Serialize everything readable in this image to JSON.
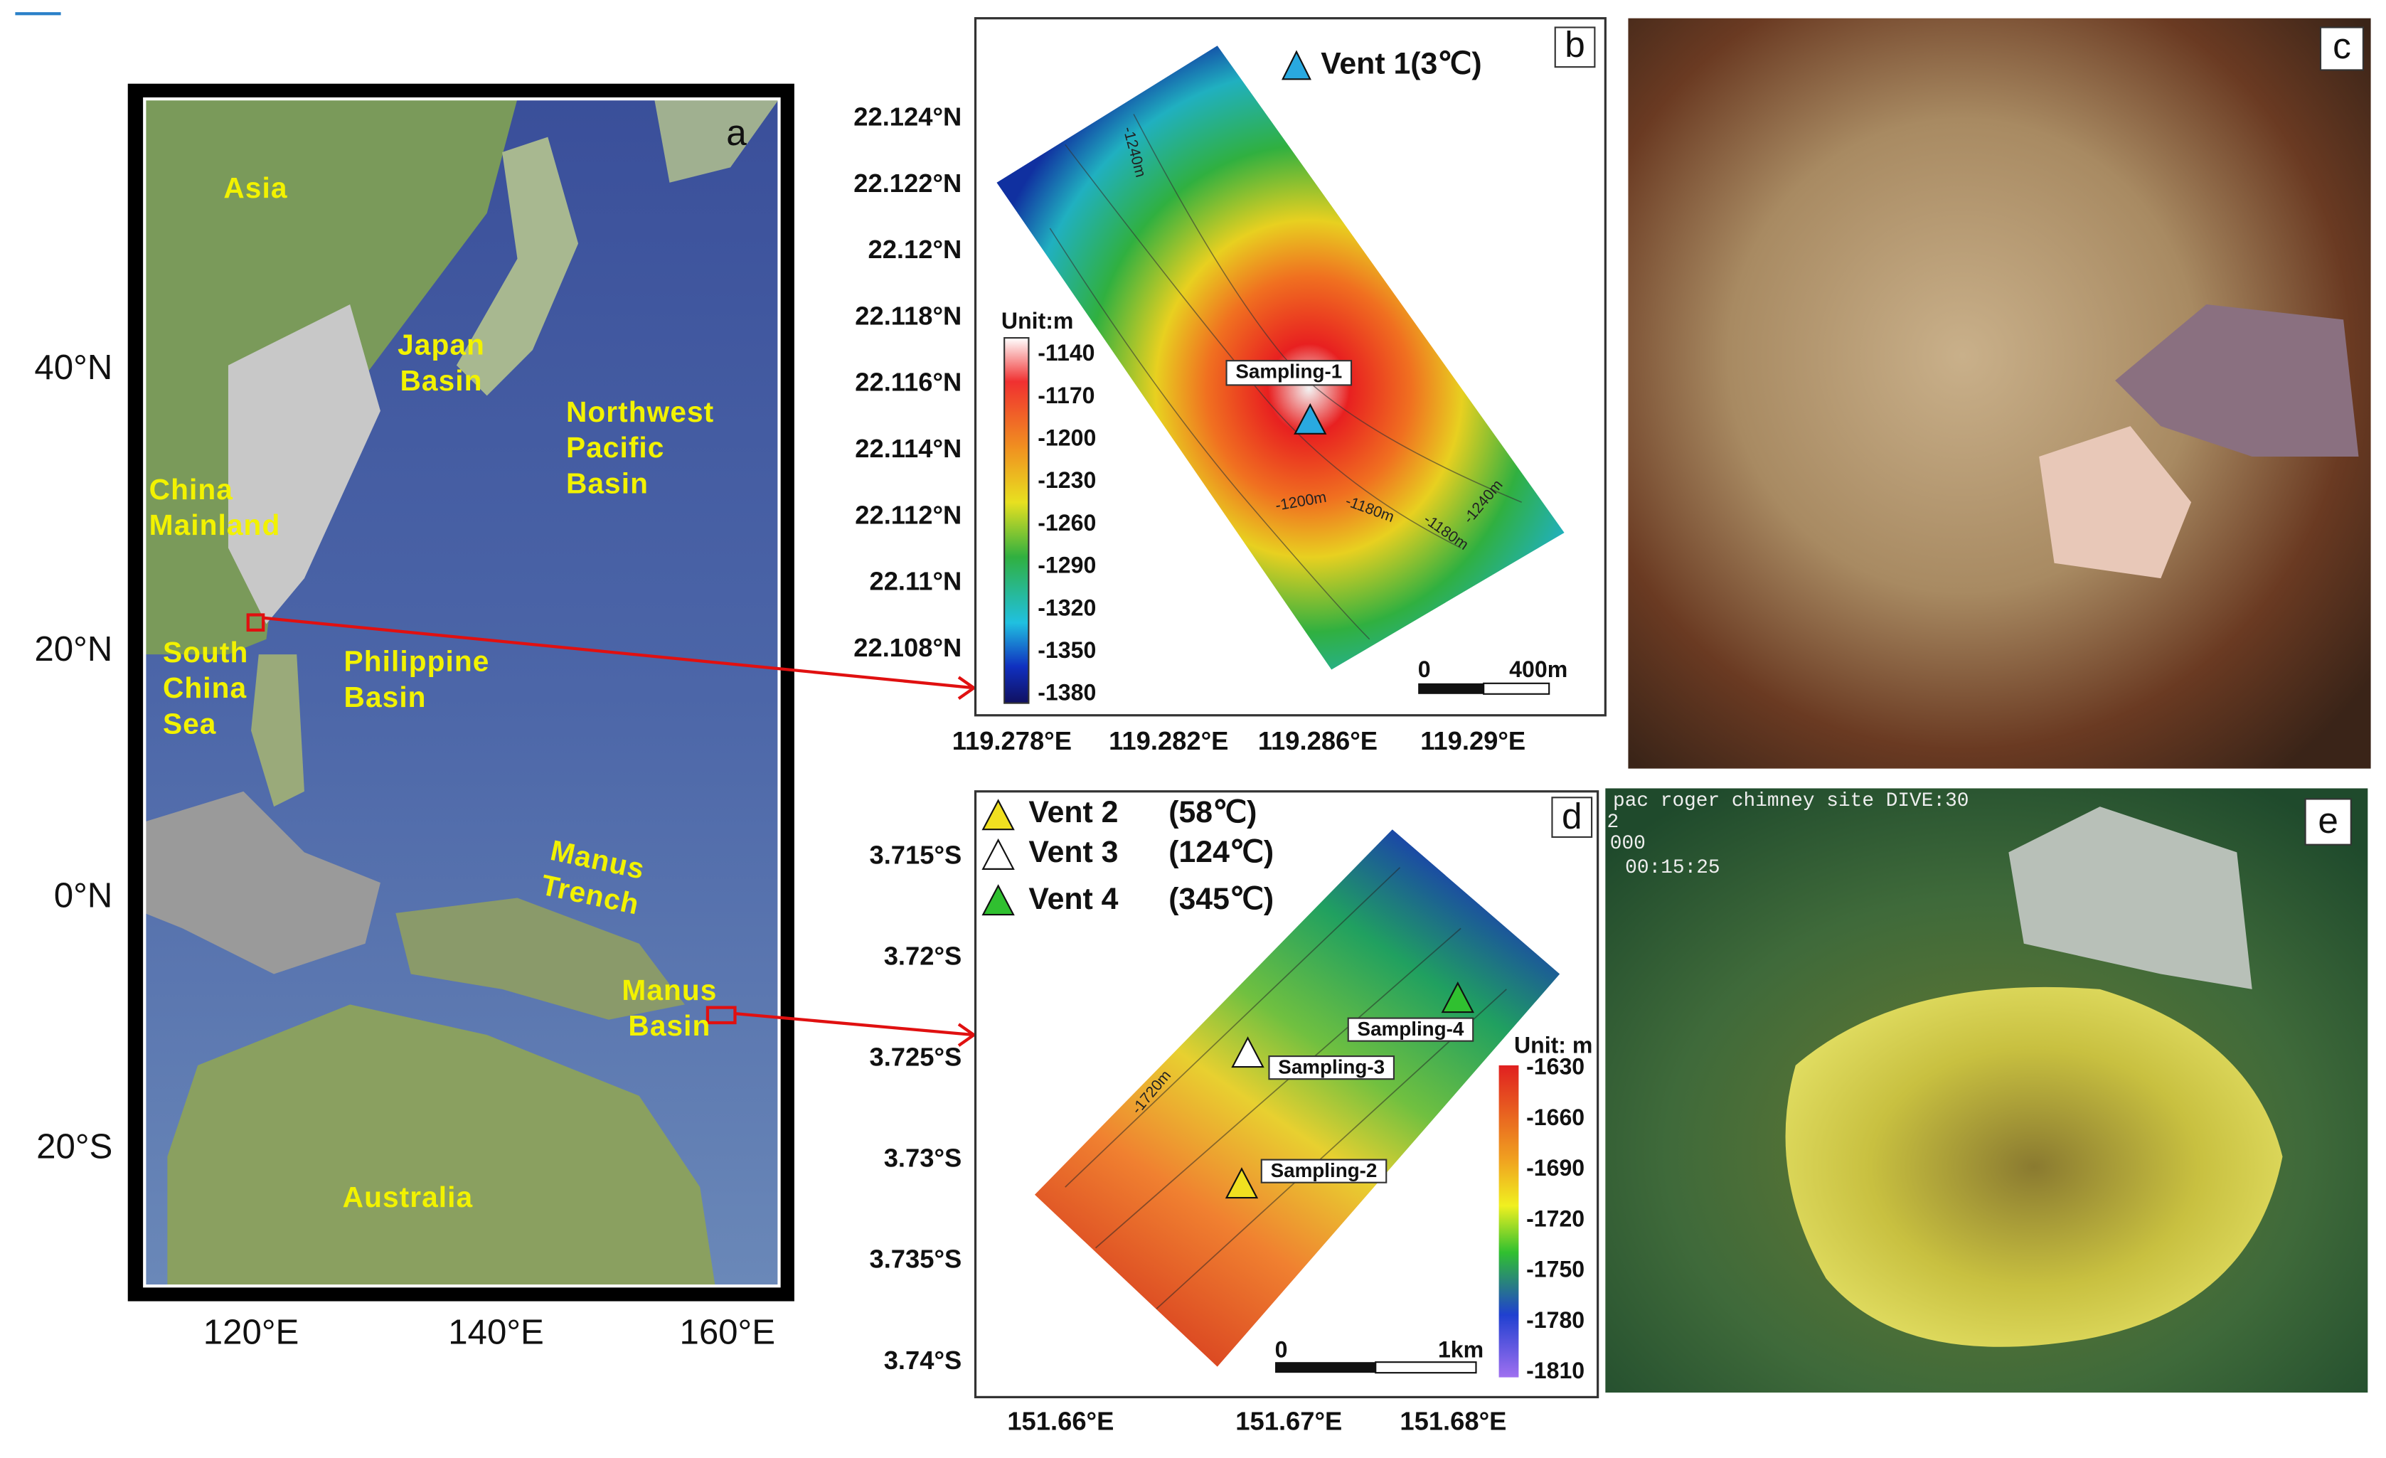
{
  "panel_a": {
    "label": "a",
    "lat_ticks": [
      "40°N",
      "20°N",
      "0°N",
      "20°S"
    ],
    "lon_ticks": [
      "120°E",
      "140°E",
      "160°E"
    ],
    "places": [
      [
        "Asia"
      ],
      [
        "Japan",
        "Basin"
      ],
      [
        "Northwest",
        "Pacific",
        "Basin"
      ],
      [
        "China",
        "Mainland"
      ],
      [
        "South",
        "China",
        "Sea"
      ],
      [
        "Philippine",
        "Basin"
      ],
      [
        "Manus",
        "Trench"
      ],
      [
        "Manus",
        "Basin"
      ],
      [
        "Australia"
      ]
    ]
  },
  "panel_b": {
    "label": "b",
    "legend": "Vent 1(3℃)",
    "lat_ticks": [
      "22.124°N",
      "22.122°N",
      "22.12°N",
      "22.118°N",
      "22.116°N",
      "22.114°N",
      "22.112°N",
      "22.11°N",
      "22.108°N"
    ],
    "lon_ticks": [
      "119.278°E",
      "119.282°E",
      "119.286°E",
      "119.29°E"
    ],
    "colorbar_title": "Unit:m",
    "colorbar_ticks": [
      -1140,
      -1170,
      -1200,
      -1230,
      -1260,
      -1290,
      -1320,
      -1350,
      -1380
    ],
    "site": "Sampling-1",
    "contours": [
      "-1240m",
      "-1200m",
      "-1180m",
      "-1180m",
      "-1240m"
    ],
    "scale": [
      "0",
      "400m"
    ]
  },
  "panel_c": {
    "label": "c"
  },
  "panel_d": {
    "label": "d",
    "legend": [
      {
        "name": "Vent 2",
        "temp": "(58℃)"
      },
      {
        "name": "Vent 3",
        "temp": "(124℃)"
      },
      {
        "name": "Vent 4",
        "temp": "(345℃)"
      }
    ],
    "lat_ticks": [
      "3.715°S",
      "3.72°S",
      "3.725°S",
      "3.73°S",
      "3.735°S",
      "3.74°S"
    ],
    "lon_ticks": [
      "151.66°E",
      "151.67°E",
      "151.68°E"
    ],
    "colorbar_title": "Unit: m",
    "colorbar_ticks": [
      -1630,
      -1660,
      -1690,
      -1720,
      -1750,
      -1780,
      -1810
    ],
    "sites": [
      "Sampling-2",
      "Sampling-3",
      "Sampling-4"
    ],
    "contours": [
      "-1720m"
    ],
    "scale": [
      "0",
      "1km"
    ]
  },
  "panel_e": {
    "label": "e",
    "overlay": [
      "pac roger chimney site  DIVE:30",
      "2",
      "000",
      "00:15:25"
    ]
  }
}
